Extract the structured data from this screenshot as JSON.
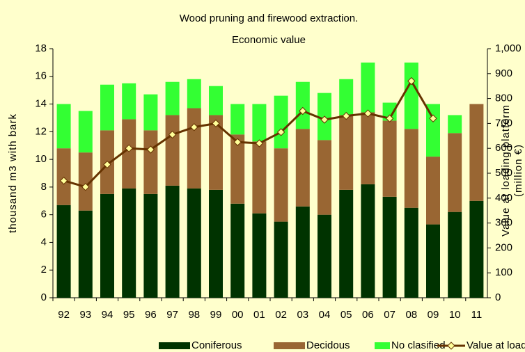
{
  "chart_data": {
    "type": "bar_line",
    "title": "Wood pruning and firewood extraction.",
    "subtitle": "Economic value",
    "ylabel": "thousand m3 with bark",
    "y2label": [
      "Value at loading platform",
      "(million €)"
    ],
    "categories": [
      "92",
      "93",
      "94",
      "95",
      "96",
      "97",
      "98",
      "99",
      "00",
      "01",
      "02",
      "03",
      "04",
      "05",
      "06",
      "07",
      "08",
      "09",
      "10",
      "11"
    ],
    "series": [
      {
        "name": "Coniferous",
        "color": "#003300",
        "values": [
          6.7,
          6.3,
          7.5,
          7.9,
          7.5,
          8.1,
          7.9,
          7.8,
          6.8,
          6.1,
          5.5,
          6.6,
          6.0,
          7.8,
          8.2,
          7.3,
          6.5,
          5.3,
          6.2,
          7.0
        ]
      },
      {
        "name": "Decidous",
        "color": "#996633",
        "values": [
          4.1,
          4.2,
          4.6,
          5.0,
          4.6,
          5.1,
          5.8,
          5.4,
          5.0,
          5.2,
          5.3,
          5.6,
          5.4,
          5.4,
          5.2,
          5.5,
          5.7,
          4.9,
          5.7,
          7.0
        ]
      },
      {
        "name": "No clasified",
        "color": "#33ff33",
        "values": [
          3.2,
          3.0,
          3.3,
          2.6,
          2.6,
          2.4,
          2.1,
          2.1,
          2.2,
          2.7,
          3.8,
          3.4,
          3.4,
          2.6,
          3.6,
          1.3,
          4.8,
          3.8,
          1.3,
          0
        ]
      },
      {
        "name": "Value at loading platform",
        "color": "#663300",
        "marker_color": "#ffff99",
        "axis": "y2",
        "values": [
          470,
          445,
          535,
          600,
          595,
          655,
          685,
          700,
          625,
          620,
          665,
          750,
          715,
          730,
          740,
          720,
          870,
          720,
          null,
          null
        ]
      }
    ],
    "ylim": [
      0,
      18
    ],
    "yticks": [
      0,
      2,
      4,
      6,
      8,
      10,
      12,
      14,
      16,
      18
    ],
    "y2lim": [
      0,
      1000
    ],
    "y2ticks": [
      0,
      100,
      200,
      300,
      400,
      500,
      600,
      700,
      800,
      900,
      {
        "value": 1000,
        "label": "1,000"
      }
    ]
  }
}
